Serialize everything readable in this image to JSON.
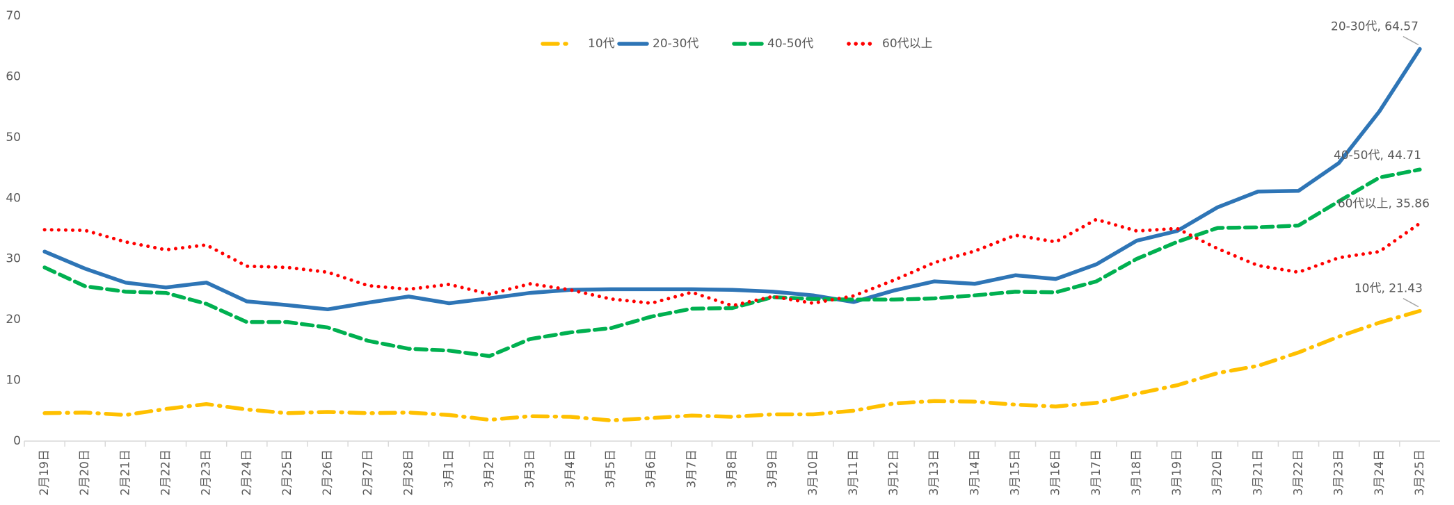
{
  "chart_data": {
    "type": "line",
    "categories": [
      "2月19日",
      "2月20日",
      "2月21日",
      "2月22日",
      "2月23日",
      "2月24日",
      "2月25日",
      "2月26日",
      "2月27日",
      "2月28日",
      "3月1日",
      "3月2日",
      "3月3日",
      "3月4日",
      "3月5日",
      "3月6日",
      "3月7日",
      "3月8日",
      "3月9日",
      "3月10日",
      "3月11日",
      "3月12日",
      "3月13日",
      "3月14日",
      "3月15日",
      "3月16日",
      "3月17日",
      "3月18日",
      "3月19日",
      "3月20日",
      "3月21日",
      "3月22日",
      "3月23日",
      "3月24日",
      "3月25日"
    ],
    "ylim": [
      0,
      70
    ],
    "yticks": [
      0,
      10,
      20,
      30,
      40,
      50,
      60,
      70
    ],
    "grid": false,
    "legend": "top",
    "series": [
      {
        "name": "10代",
        "color": "#FFC000",
        "style": "dashdot",
        "values": [
          4.6,
          4.7,
          4.3,
          5.3,
          6.1,
          5.2,
          4.6,
          4.8,
          4.6,
          4.7,
          4.3,
          3.5,
          4.1,
          4.0,
          3.4,
          3.8,
          4.2,
          4.0,
          4.4,
          4.4,
          5.0,
          6.2,
          6.6,
          6.5,
          6.0,
          5.7,
          6.3,
          7.8,
          9.2,
          11.2,
          12.4,
          14.6,
          17.2,
          19.5,
          21.43
        ],
        "value_labels": [
          null,
          null,
          null,
          null,
          null,
          null,
          null,
          null,
          null,
          null,
          null,
          null,
          null,
          null,
          null,
          null,
          null,
          null,
          null,
          null,
          null,
          null,
          null,
          null,
          null,
          null,
          null,
          null,
          null,
          null,
          null,
          null,
          null,
          null,
          "10代, 21.43"
        ]
      },
      {
        "name": "20-30代",
        "color": "#2E75B6",
        "style": "solid",
        "values": [
          31.2,
          28.4,
          26.1,
          25.3,
          26.1,
          23.0,
          22.4,
          21.7,
          22.8,
          23.8,
          22.7,
          23.5,
          24.4,
          24.9,
          25.0,
          25.0,
          25.0,
          24.9,
          24.6,
          24.0,
          22.9,
          24.8,
          26.3,
          25.9,
          27.3,
          26.7,
          29.1,
          33.0,
          34.6,
          38.5,
          41.1,
          41.2,
          45.8,
          54.3,
          64.57
        ],
        "value_labels": [
          null,
          null,
          null,
          null,
          null,
          null,
          null,
          null,
          null,
          null,
          null,
          null,
          null,
          null,
          null,
          null,
          null,
          null,
          null,
          null,
          null,
          null,
          null,
          null,
          null,
          null,
          null,
          null,
          null,
          null,
          null,
          null,
          null,
          null,
          "20-30代, 64.57"
        ]
      },
      {
        "name": "40-50代",
        "color": "#00B050",
        "style": "dash",
        "values": [
          28.6,
          25.5,
          24.6,
          24.4,
          22.6,
          19.6,
          19.6,
          18.7,
          16.5,
          15.2,
          14.9,
          14.0,
          16.8,
          17.9,
          18.6,
          20.5,
          21.8,
          21.9,
          23.7,
          23.4,
          23.3,
          23.3,
          23.5,
          24.0,
          24.6,
          24.5,
          26.3,
          30.0,
          32.8,
          35.1,
          35.2,
          35.5,
          39.5,
          43.4,
          44.71
        ],
        "value_labels": [
          null,
          null,
          null,
          null,
          null,
          null,
          null,
          null,
          null,
          null,
          null,
          null,
          null,
          null,
          null,
          null,
          null,
          null,
          null,
          null,
          null,
          null,
          null,
          null,
          null,
          null,
          null,
          null,
          null,
          null,
          null,
          null,
          null,
          null,
          "40-50代, 44.71"
        ]
      },
      {
        "name": "60代以上",
        "color": "#FF0000",
        "style": "dot",
        "values": [
          34.8,
          34.7,
          32.8,
          31.5,
          32.3,
          28.8,
          28.6,
          27.8,
          25.6,
          25.0,
          25.8,
          24.2,
          25.9,
          24.9,
          23.4,
          22.7,
          24.5,
          22.3,
          23.8,
          22.7,
          23.9,
          26.5,
          29.4,
          31.3,
          33.9,
          32.8,
          36.5,
          34.6,
          35.0,
          31.7,
          28.9,
          27.8,
          30.2,
          31.2,
          35.86
        ],
        "value_labels": [
          null,
          null,
          null,
          null,
          null,
          null,
          null,
          null,
          null,
          null,
          null,
          null,
          null,
          null,
          null,
          null,
          null,
          null,
          null,
          null,
          null,
          null,
          null,
          null,
          null,
          null,
          null,
          null,
          null,
          null,
          null,
          null,
          null,
          null,
          "60代以上, 35.86"
        ]
      }
    ]
  }
}
